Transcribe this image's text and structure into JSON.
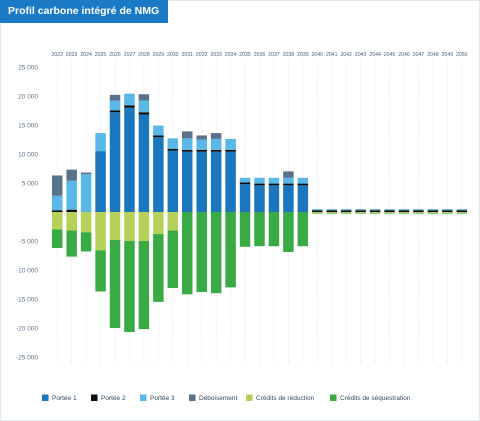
{
  "title": "Profil carbone intégré de NMG",
  "chart_data": {
    "type": "bar",
    "stacked": true,
    "categories": [
      "2022",
      "2023",
      "2024",
      "2025",
      "2026",
      "2027",
      "2028",
      "2029",
      "2030",
      "2031",
      "2032",
      "2033",
      "2034",
      "2035",
      "2036",
      "2037",
      "2038",
      "2039",
      "2040",
      "2041",
      "2042",
      "2043",
      "2044",
      "2045",
      "2046",
      "2047",
      "2048",
      "2049",
      "2050"
    ],
    "ylim": [
      -25000,
      25000
    ],
    "yticks": [
      -25000,
      -20000,
      -15000,
      -10000,
      -5000,
      0,
      5000,
      10000,
      15000,
      20000,
      25000
    ],
    "ytick_labels": [
      "-25 000",
      "-20 000",
      "-15 000",
      "-10 000",
      "-5 000",
      "",
      "5 000",
      "10 000",
      "15 000",
      "20 000",
      "25 000"
    ],
    "x_axis_position": "top",
    "grid": "vertical",
    "legend_position": "bottom",
    "series": [
      {
        "name": "Portée 1",
        "color": "#1a76bd",
        "values": [
          0,
          0,
          0,
          10500,
          17200,
          18000,
          16800,
          12900,
          10600,
          10400,
          10400,
          10400,
          10400,
          4800,
          4600,
          4600,
          4600,
          4600,
          0,
          0,
          0,
          0,
          0,
          0,
          0,
          0,
          0,
          0,
          0
        ]
      },
      {
        "name": "Portée 2",
        "color": "#0c0c0c",
        "values": [
          300,
          400,
          0,
          0,
          300,
          400,
          400,
          300,
          300,
          300,
          300,
          300,
          300,
          300,
          300,
          300,
          300,
          300,
          300,
          300,
          300,
          300,
          300,
          300,
          300,
          300,
          300,
          300,
          300
        ]
      },
      {
        "name": "Portée 3",
        "color": "#5ab8e8",
        "values": [
          2500,
          5000,
          6500,
          3100,
          1700,
          2000,
          2000,
          1700,
          1800,
          2000,
          1800,
          1900,
          1900,
          800,
          1000,
          1000,
          1000,
          1000,
          200,
          200,
          200,
          200,
          200,
          200,
          200,
          200,
          200,
          200,
          200
        ]
      },
      {
        "name": "Déboisement",
        "color": "#587389",
        "values": [
          3500,
          1900,
          300,
          0,
          1000,
          0,
          1100,
          0,
          0,
          1200,
          700,
          1000,
          0,
          0,
          0,
          0,
          1100,
          0,
          0,
          0,
          0,
          0,
          0,
          0,
          0,
          0,
          0,
          0,
          0
        ]
      },
      {
        "name": "Crédits de réduction",
        "color": "#b5d15a",
        "values": [
          -3000,
          -3200,
          -3500,
          -6600,
          -4800,
          -5000,
          -5000,
          -3800,
          -3200,
          0,
          0,
          0,
          0,
          0,
          0,
          0,
          0,
          0,
          -200,
          -200,
          -200,
          -200,
          -200,
          -200,
          -200,
          -200,
          -200,
          -200,
          -200
        ]
      },
      {
        "name": "Crédits de séquestration",
        "color": "#3aab44",
        "values": [
          -3200,
          -4500,
          -3300,
          -7100,
          -15200,
          -15700,
          -15200,
          -11700,
          -9900,
          -14200,
          -13800,
          -14000,
          -13000,
          -6000,
          -5900,
          -5900,
          -6900,
          -5900,
          -100,
          -100,
          -100,
          -100,
          -100,
          -100,
          -100,
          -100,
          -100,
          -100,
          -100
        ]
      }
    ]
  }
}
